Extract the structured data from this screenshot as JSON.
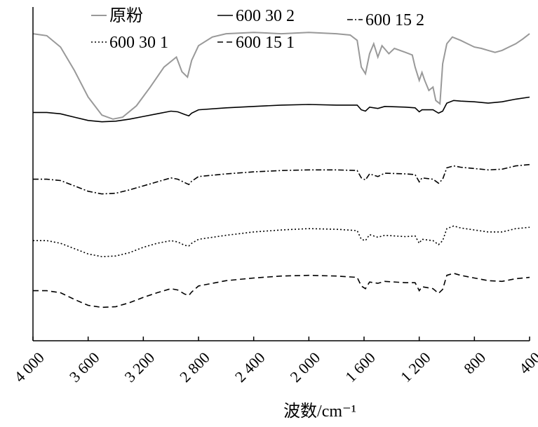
{
  "chart_data": {
    "type": "line",
    "title": "",
    "xlabel": "波数/cm⁻¹",
    "ylabel": "",
    "x_reversed": true,
    "xlim": [
      4000,
      400
    ],
    "xticks": [
      4000,
      3600,
      3200,
      2800,
      2400,
      2000,
      1600,
      1200,
      800,
      400
    ],
    "xtick_labels": [
      "4 000",
      "3 600",
      "3 200",
      "2 800",
      "2 400",
      "2 000",
      "1 600",
      "1 200",
      "800",
      "400"
    ],
    "y_axis_ticks_shown": false,
    "grid": false,
    "legend_position": "top",
    "series_note_units": "transmittance, arbitrary offset units",
    "series": [
      {
        "name": "原粉",
        "color": "#999999",
        "dash": "solid",
        "points": [
          [
            4000,
            5.0
          ],
          [
            3900,
            4.97
          ],
          [
            3800,
            4.8
          ],
          [
            3700,
            4.45
          ],
          [
            3600,
            4.05
          ],
          [
            3500,
            3.78
          ],
          [
            3420,
            3.72
          ],
          [
            3350,
            3.75
          ],
          [
            3250,
            3.92
          ],
          [
            3150,
            4.2
          ],
          [
            3050,
            4.5
          ],
          [
            2960,
            4.65
          ],
          [
            2920,
            4.43
          ],
          [
            2880,
            4.35
          ],
          [
            2850,
            4.6
          ],
          [
            2800,
            4.82
          ],
          [
            2700,
            4.95
          ],
          [
            2600,
            5.0
          ],
          [
            2400,
            5.02
          ],
          [
            2200,
            5.0
          ],
          [
            2000,
            5.02
          ],
          [
            1800,
            5.0
          ],
          [
            1700,
            4.98
          ],
          [
            1650,
            4.9
          ],
          [
            1620,
            4.5
          ],
          [
            1590,
            4.4
          ],
          [
            1560,
            4.7
          ],
          [
            1530,
            4.85
          ],
          [
            1500,
            4.65
          ],
          [
            1470,
            4.82
          ],
          [
            1420,
            4.7
          ],
          [
            1380,
            4.78
          ],
          [
            1300,
            4.72
          ],
          [
            1250,
            4.68
          ],
          [
            1230,
            4.5
          ],
          [
            1200,
            4.3
          ],
          [
            1180,
            4.42
          ],
          [
            1160,
            4.3
          ],
          [
            1130,
            4.15
          ],
          [
            1100,
            4.2
          ],
          [
            1080,
            4.0
          ],
          [
            1050,
            3.95
          ],
          [
            1030,
            4.55
          ],
          [
            1000,
            4.85
          ],
          [
            960,
            4.95
          ],
          [
            900,
            4.9
          ],
          [
            850,
            4.85
          ],
          [
            800,
            4.8
          ],
          [
            750,
            4.78
          ],
          [
            700,
            4.75
          ],
          [
            650,
            4.72
          ],
          [
            600,
            4.75
          ],
          [
            550,
            4.8
          ],
          [
            500,
            4.85
          ],
          [
            450,
            4.92
          ],
          [
            400,
            5.0
          ]
        ]
      },
      {
        "name": "600 30 2",
        "color": "#000000",
        "dash": "solid",
        "points": [
          [
            4000,
            3.82
          ],
          [
            3900,
            3.82
          ],
          [
            3800,
            3.8
          ],
          [
            3700,
            3.75
          ],
          [
            3600,
            3.7
          ],
          [
            3500,
            3.68
          ],
          [
            3400,
            3.69
          ],
          [
            3300,
            3.72
          ],
          [
            3200,
            3.76
          ],
          [
            3100,
            3.8
          ],
          [
            3000,
            3.84
          ],
          [
            2950,
            3.83
          ],
          [
            2900,
            3.79
          ],
          [
            2870,
            3.77
          ],
          [
            2850,
            3.81
          ],
          [
            2800,
            3.86
          ],
          [
            2600,
            3.89
          ],
          [
            2400,
            3.91
          ],
          [
            2200,
            3.93
          ],
          [
            2000,
            3.94
          ],
          [
            1800,
            3.93
          ],
          [
            1650,
            3.93
          ],
          [
            1620,
            3.86
          ],
          [
            1590,
            3.84
          ],
          [
            1560,
            3.9
          ],
          [
            1500,
            3.88
          ],
          [
            1450,
            3.91
          ],
          [
            1300,
            3.9
          ],
          [
            1230,
            3.89
          ],
          [
            1200,
            3.83
          ],
          [
            1180,
            3.86
          ],
          [
            1100,
            3.86
          ],
          [
            1060,
            3.81
          ],
          [
            1030,
            3.84
          ],
          [
            1000,
            3.96
          ],
          [
            950,
            4.0
          ],
          [
            900,
            3.99
          ],
          [
            800,
            3.98
          ],
          [
            700,
            3.96
          ],
          [
            600,
            3.98
          ],
          [
            500,
            4.02
          ],
          [
            400,
            4.05
          ]
        ]
      },
      {
        "name": "600 15 2",
        "color": "#000000",
        "dash": "dashdot",
        "points": [
          [
            4000,
            2.82
          ],
          [
            3900,
            2.82
          ],
          [
            3800,
            2.8
          ],
          [
            3700,
            2.72
          ],
          [
            3600,
            2.64
          ],
          [
            3500,
            2.6
          ],
          [
            3400,
            2.61
          ],
          [
            3300,
            2.66
          ],
          [
            3200,
            2.72
          ],
          [
            3100,
            2.78
          ],
          [
            3000,
            2.84
          ],
          [
            2950,
            2.82
          ],
          [
            2900,
            2.77
          ],
          [
            2870,
            2.74
          ],
          [
            2850,
            2.79
          ],
          [
            2800,
            2.86
          ],
          [
            2600,
            2.9
          ],
          [
            2400,
            2.93
          ],
          [
            2200,
            2.95
          ],
          [
            2000,
            2.96
          ],
          [
            1800,
            2.96
          ],
          [
            1650,
            2.95
          ],
          [
            1620,
            2.84
          ],
          [
            1590,
            2.81
          ],
          [
            1560,
            2.9
          ],
          [
            1500,
            2.86
          ],
          [
            1450,
            2.91
          ],
          [
            1300,
            2.9
          ],
          [
            1230,
            2.89
          ],
          [
            1200,
            2.78
          ],
          [
            1180,
            2.84
          ],
          [
            1100,
            2.82
          ],
          [
            1060,
            2.76
          ],
          [
            1030,
            2.82
          ],
          [
            1000,
            2.99
          ],
          [
            950,
            3.02
          ],
          [
            900,
            3.0
          ],
          [
            800,
            2.98
          ],
          [
            700,
            2.96
          ],
          [
            600,
            2.97
          ],
          [
            500,
            3.02
          ],
          [
            400,
            3.04
          ]
        ]
      },
      {
        "name": "600 30 1",
        "color": "#000000",
        "dash": "dotted",
        "points": [
          [
            4000,
            1.9
          ],
          [
            3900,
            1.9
          ],
          [
            3800,
            1.86
          ],
          [
            3700,
            1.78
          ],
          [
            3600,
            1.7
          ],
          [
            3500,
            1.66
          ],
          [
            3400,
            1.67
          ],
          [
            3300,
            1.72
          ],
          [
            3200,
            1.8
          ],
          [
            3100,
            1.86
          ],
          [
            3000,
            1.9
          ],
          [
            2950,
            1.88
          ],
          [
            2900,
            1.83
          ],
          [
            2870,
            1.82
          ],
          [
            2850,
            1.86
          ],
          [
            2800,
            1.92
          ],
          [
            2600,
            1.98
          ],
          [
            2400,
            2.03
          ],
          [
            2200,
            2.06
          ],
          [
            2000,
            2.08
          ],
          [
            1800,
            2.07
          ],
          [
            1650,
            2.05
          ],
          [
            1620,
            1.92
          ],
          [
            1590,
            1.9
          ],
          [
            1560,
            1.99
          ],
          [
            1500,
            1.95
          ],
          [
            1450,
            1.98
          ],
          [
            1300,
            1.96
          ],
          [
            1230,
            1.97
          ],
          [
            1200,
            1.86
          ],
          [
            1180,
            1.92
          ],
          [
            1100,
            1.9
          ],
          [
            1060,
            1.84
          ],
          [
            1030,
            1.9
          ],
          [
            1000,
            2.08
          ],
          [
            950,
            2.12
          ],
          [
            900,
            2.09
          ],
          [
            800,
            2.06
          ],
          [
            700,
            2.03
          ],
          [
            600,
            2.03
          ],
          [
            500,
            2.08
          ],
          [
            400,
            2.1
          ]
        ]
      },
      {
        "name": "600 15 1",
        "color": "#000000",
        "dash": "dashed",
        "points": [
          [
            4000,
            1.15
          ],
          [
            3900,
            1.15
          ],
          [
            3800,
            1.12
          ],
          [
            3700,
            1.02
          ],
          [
            3600,
            0.93
          ],
          [
            3500,
            0.9
          ],
          [
            3400,
            0.91
          ],
          [
            3300,
            0.97
          ],
          [
            3200,
            1.05
          ],
          [
            3100,
            1.12
          ],
          [
            3000,
            1.18
          ],
          [
            2950,
            1.16
          ],
          [
            2900,
            1.1
          ],
          [
            2870,
            1.08
          ],
          [
            2850,
            1.13
          ],
          [
            2800,
            1.22
          ],
          [
            2600,
            1.3
          ],
          [
            2400,
            1.34
          ],
          [
            2200,
            1.37
          ],
          [
            2000,
            1.38
          ],
          [
            1800,
            1.37
          ],
          [
            1650,
            1.35
          ],
          [
            1620,
            1.22
          ],
          [
            1590,
            1.18
          ],
          [
            1560,
            1.28
          ],
          [
            1500,
            1.26
          ],
          [
            1450,
            1.29
          ],
          [
            1300,
            1.27
          ],
          [
            1230,
            1.27
          ],
          [
            1200,
            1.15
          ],
          [
            1180,
            1.21
          ],
          [
            1100,
            1.18
          ],
          [
            1060,
            1.11
          ],
          [
            1030,
            1.17
          ],
          [
            1000,
            1.38
          ],
          [
            950,
            1.41
          ],
          [
            900,
            1.38
          ],
          [
            800,
            1.34
          ],
          [
            700,
            1.3
          ],
          [
            600,
            1.29
          ],
          [
            500,
            1.33
          ],
          [
            400,
            1.35
          ]
        ]
      }
    ]
  }
}
